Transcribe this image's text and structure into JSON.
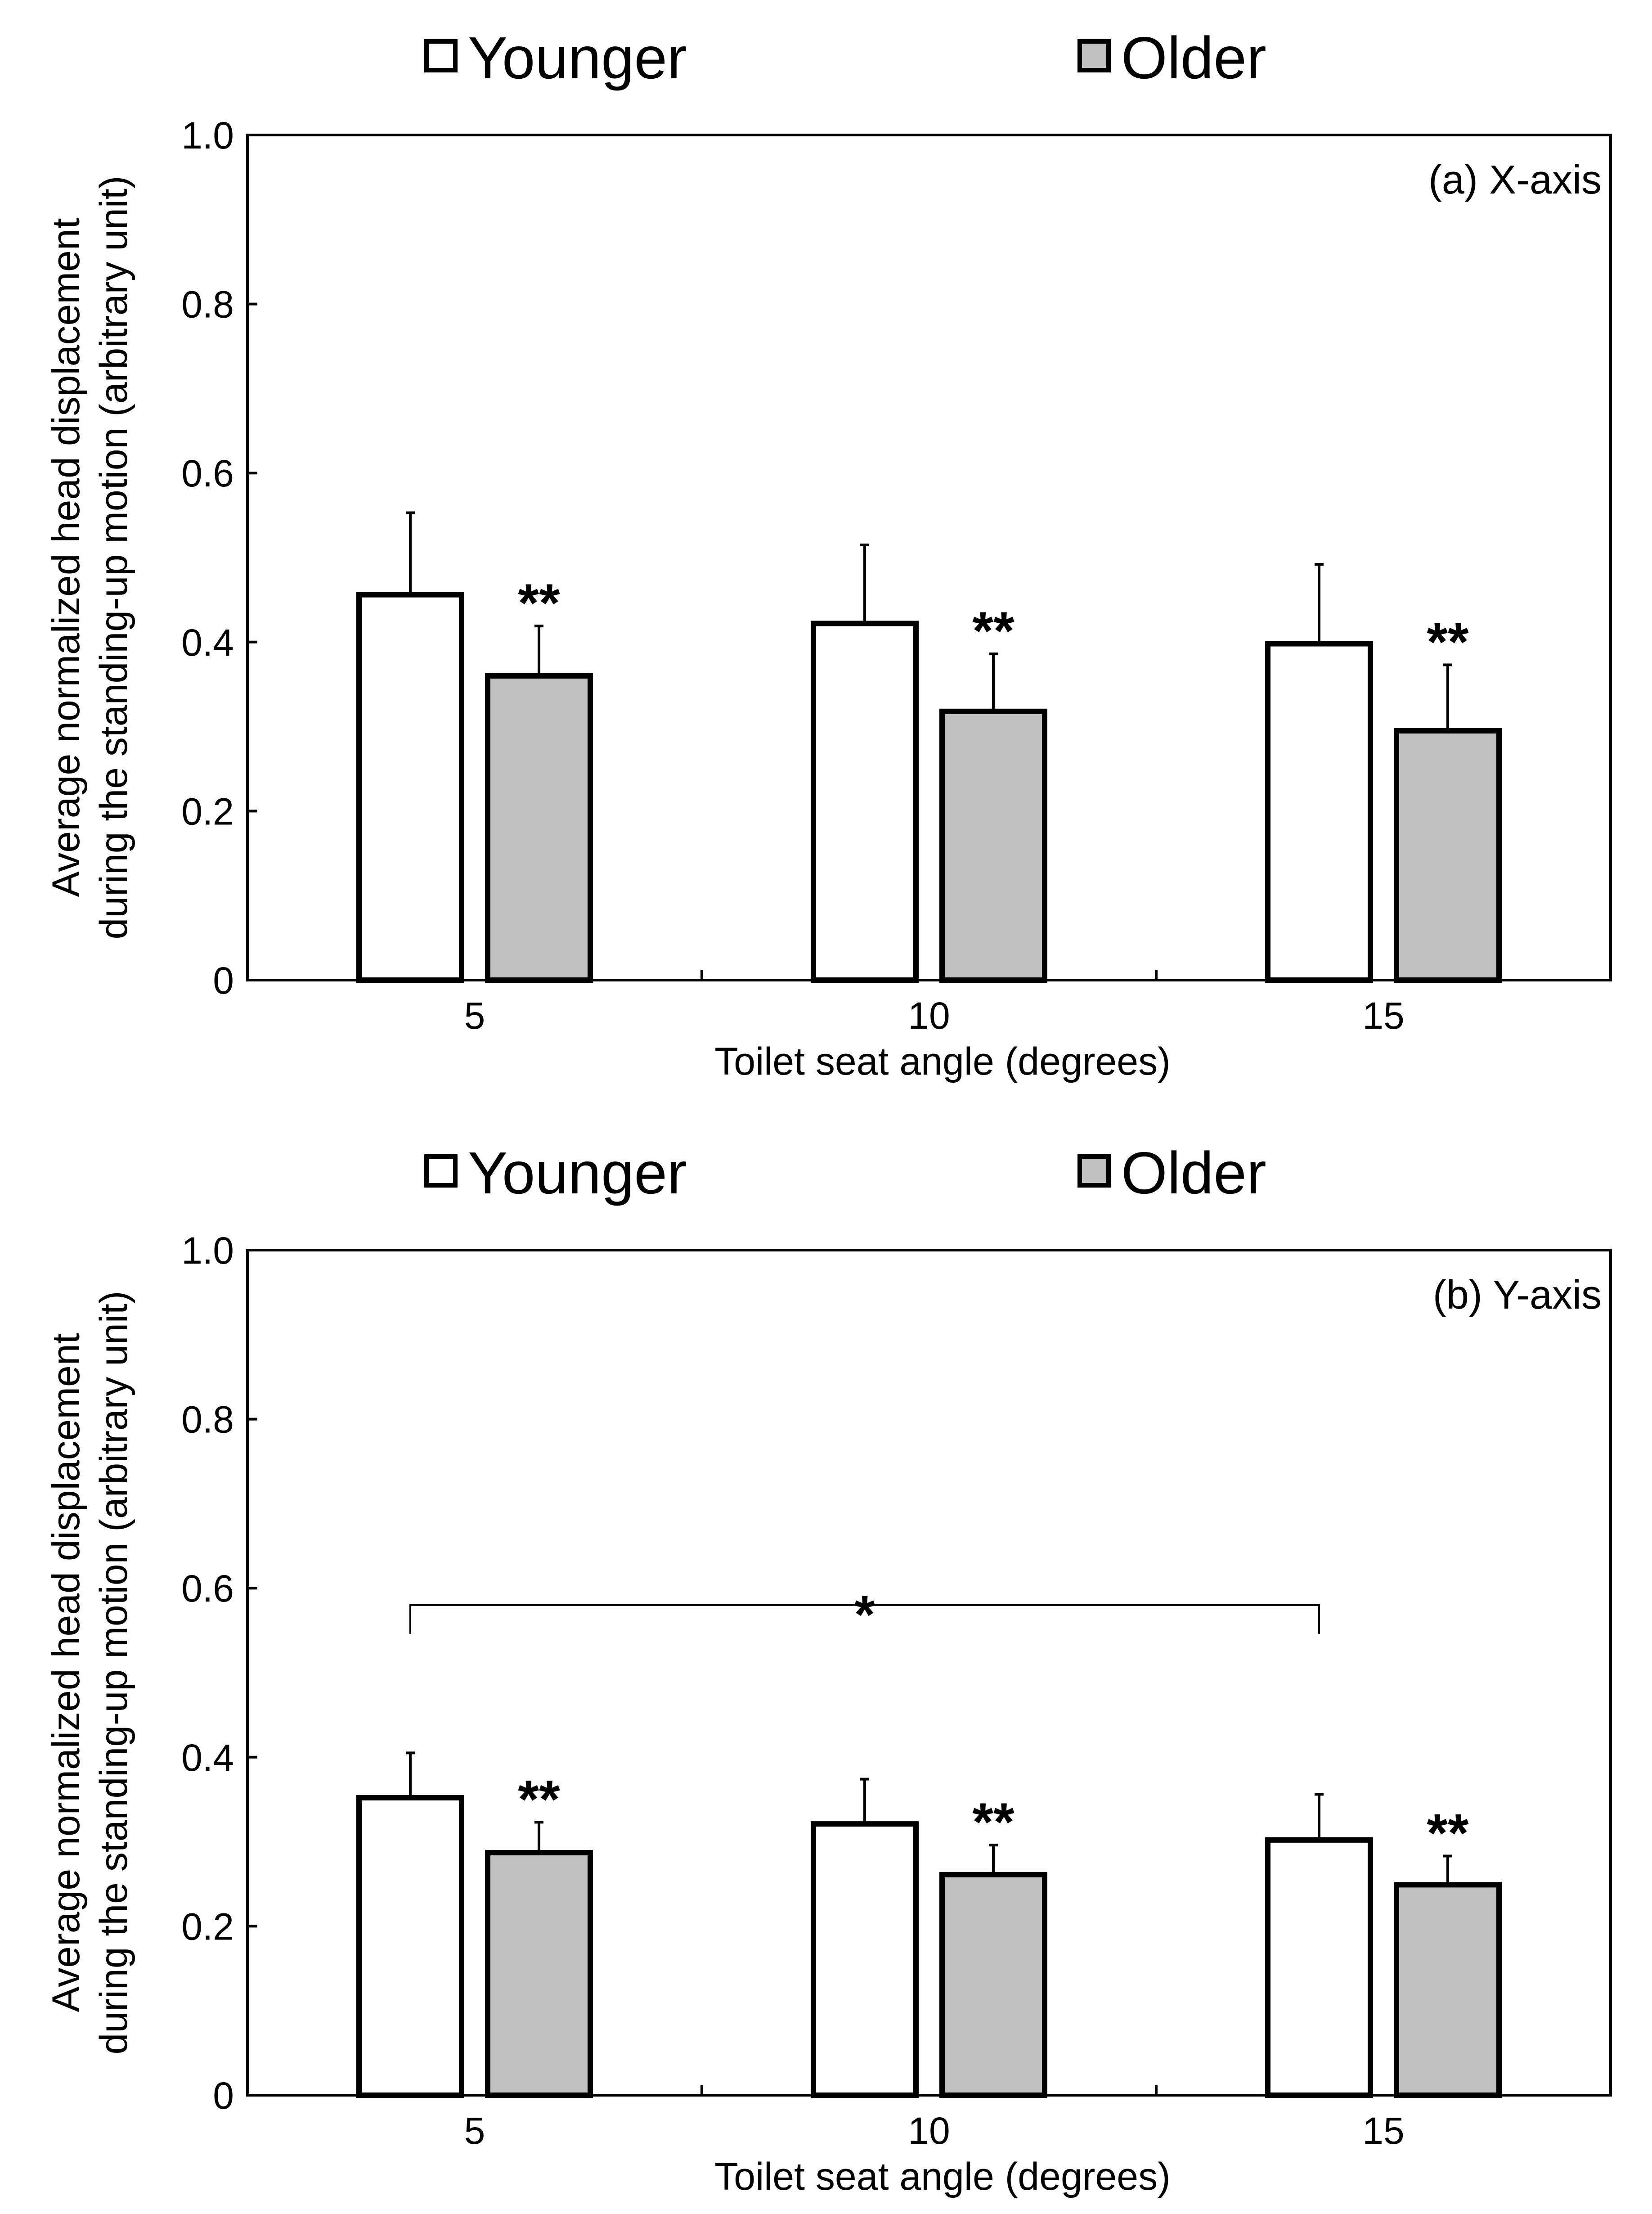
{
  "chart_data": [
    {
      "type": "bar",
      "panel_label": "(a) X-axis",
      "categories": [
        "5",
        "10",
        "15"
      ],
      "series": [
        {
          "name": "Younger",
          "values": [
            0.456,
            0.422,
            0.398
          ],
          "error": [
            0.097,
            0.093,
            0.094
          ],
          "color": "#ffffff"
        },
        {
          "name": "Older",
          "values": [
            0.36,
            0.318,
            0.295
          ],
          "error": [
            0.059,
            0.068,
            0.078
          ],
          "color": "#c0c0c0"
        }
      ],
      "significance": [
        "**",
        "**",
        "**"
      ],
      "bracket": null,
      "xlabel": "Toilet seat angle (degrees)",
      "ylabel_lines": [
        "Average normalized head displacement",
        "during the standing-up motion (arbitrary unit)"
      ],
      "ylim": [
        0,
        1.0
      ],
      "yticks": [
        0,
        0.2,
        0.4,
        0.6,
        0.8,
        1.0
      ],
      "ytick_labels": [
        "0",
        "0.2",
        "0.4",
        "0.6",
        "0.8",
        "1.0"
      ],
      "legend": [
        "Younger",
        "Older"
      ],
      "grid": false
    },
    {
      "type": "bar",
      "panel_label": "(b) Y-axis",
      "categories": [
        "5",
        "10",
        "15"
      ],
      "series": [
        {
          "name": "Younger",
          "values": [
            0.352,
            0.321,
            0.302
          ],
          "error": [
            0.053,
            0.053,
            0.054
          ],
          "color": "#ffffff"
        },
        {
          "name": "Older",
          "values": [
            0.287,
            0.261,
            0.249
          ],
          "error": [
            0.036,
            0.035,
            0.034
          ],
          "color": "#c0c0c0"
        }
      ],
      "significance": [
        "**",
        "**",
        "**"
      ],
      "bracket": {
        "from_category": "5",
        "to_category": "15",
        "y": 0.58,
        "label": "*"
      },
      "xlabel": "Toilet seat angle (degrees)",
      "ylabel_lines": [
        "Average normalized head displacement",
        "during the standing-up motion (arbitrary unit)"
      ],
      "ylim": [
        0,
        1.0
      ],
      "yticks": [
        0,
        0.2,
        0.4,
        0.6,
        0.8,
        1.0
      ],
      "ytick_labels": [
        "0",
        "0.2",
        "0.4",
        "0.6",
        "0.8",
        "1.0"
      ],
      "legend": [
        "Younger",
        "Older"
      ],
      "grid": false
    }
  ]
}
